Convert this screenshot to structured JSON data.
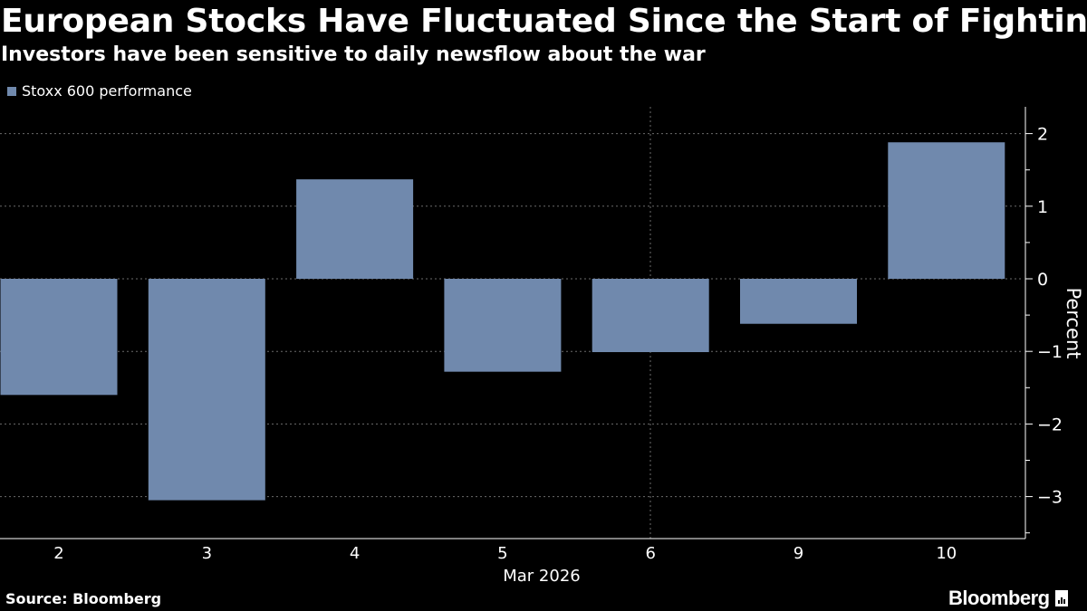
{
  "header": {
    "title": "European Stocks Have Fluctuated Since the Start of Fighting",
    "subtitle": "Investors have been sensitive to daily newsflow about the war"
  },
  "footer": {
    "source": "Source: Bloomberg",
    "brand": "Bloomberg"
  },
  "colors": {
    "background": "#000000",
    "bar": "#7089ad",
    "text": "#ffffff",
    "grid": "#6b6b6b"
  },
  "chart_data": {
    "type": "bar",
    "title": "European Stocks Have Fluctuated Since the Start of Fighting",
    "subtitle": "Investors have been sensitive to daily newsflow about the war",
    "categories": [
      "2",
      "3",
      "4",
      "5",
      "6",
      "9",
      "10"
    ],
    "xlabel": "Mar 2026",
    "ylabel": "Percent",
    "ylim": [
      -3.5,
      2.4
    ],
    "yticks": [
      2,
      1,
      0,
      -1,
      -2,
      -3
    ],
    "y_axis_side": "right",
    "grid": true,
    "legend_position": "top-left",
    "series": [
      {
        "name": "Stoxx 600 performance",
        "values": [
          -1.6,
          -3.05,
          1.37,
          -1.28,
          -1.01,
          -0.62,
          1.88
        ]
      }
    ]
  }
}
